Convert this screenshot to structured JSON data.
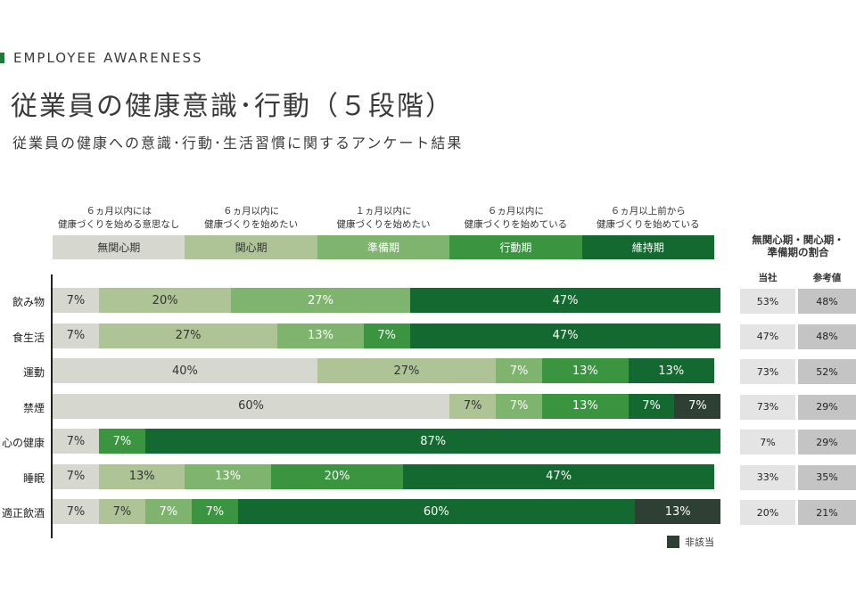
{
  "eyebrow": "EMPLOYEE AWARENESS",
  "title": "従業員の健康意識･行動（５段階）",
  "subtitle": "従業員の健康への意識･行動･生活習慣に関するアンケート結果",
  "stages": [
    {
      "key": "s1",
      "desc1": "６ヵ月以内には",
      "desc2": "健康づくりを始める意思なし",
      "label": "無関心期",
      "color": "#d6d8cf",
      "text_color": "#333333"
    },
    {
      "key": "s2",
      "desc1": "６ヵ月以内に",
      "desc2": "健康づくりを始めたい",
      "label": "関心期",
      "color": "#aec497",
      "text_color": "#333333"
    },
    {
      "key": "s3",
      "desc1": "１ヵ月以内に",
      "desc2": "健康づくりを始めたい",
      "label": "準備期",
      "color": "#7eb46e",
      "text_color": "#ffffff"
    },
    {
      "key": "s4",
      "desc1": "６ヵ月以内に",
      "desc2": "健康づくりを始めている",
      "label": "行動期",
      "color": "#3a9440",
      "text_color": "#ffffff"
    },
    {
      "key": "s5",
      "desc1": "６ヵ月以上前から",
      "desc2": "健康づくりを始めている",
      "label": "維持期",
      "color": "#13692f",
      "text_color": "#ffffff"
    }
  ],
  "na": {
    "label": "非該当",
    "color": "#2e3f33"
  },
  "side": {
    "heading1": "無関心期・関心期・",
    "heading2": "準備期の割合",
    "col_own": "当社",
    "col_ref": "参考値",
    "own_color": "#e4e4e4",
    "ref_color": "#c4c4c4"
  },
  "chart_data": {
    "type": "bar",
    "stacked": true,
    "orientation": "horizontal",
    "xlim": [
      0,
      100
    ],
    "categories": [
      "飲み物",
      "食生活",
      "運動",
      "禁煙",
      "心の健康",
      "睡眠",
      "適正飲酒"
    ],
    "series": [
      {
        "name": "無関心期",
        "values": [
          7,
          7,
          40,
          60,
          7,
          7,
          7
        ],
        "labels": [
          "7%",
          "7%",
          "40%",
          "60%",
          "7%",
          "7%",
          "7%"
        ]
      },
      {
        "name": "関心期",
        "values": [
          20,
          27,
          27,
          7,
          0,
          13,
          7
        ],
        "labels": [
          "20%",
          "27%",
          "27%",
          "7%",
          "",
          "13%",
          "7%"
        ]
      },
      {
        "name": "準備期",
        "values": [
          27,
          13,
          7,
          7,
          0,
          13,
          7
        ],
        "labels": [
          "27%",
          "13%",
          "7%",
          "7%",
          "",
          "13%",
          "7%"
        ]
      },
      {
        "name": "行動期",
        "values": [
          0,
          7,
          13,
          13,
          7,
          20,
          7
        ],
        "labels": [
          "",
          "7%",
          "13%",
          "13%",
          "7%",
          "20%",
          "7%"
        ]
      },
      {
        "name": "維持期",
        "values": [
          47,
          47,
          13,
          7,
          87,
          47,
          60
        ],
        "labels": [
          "47%",
          "47%",
          "13%",
          "7%",
          "87%",
          "47%",
          "60%"
        ]
      },
      {
        "name": "非該当",
        "values": [
          0,
          0,
          0,
          7,
          0,
          0,
          13
        ],
        "labels": [
          "",
          "",
          "",
          "7%",
          "",
          "",
          "13%"
        ]
      }
    ],
    "own_ratio": [
      "53%",
      "47%",
      "73%",
      "73%",
      "7%",
      "33%",
      "20%"
    ],
    "reference_ratio": [
      "48%",
      "48%",
      "52%",
      "29%",
      "29%",
      "35%",
      "21%"
    ]
  }
}
